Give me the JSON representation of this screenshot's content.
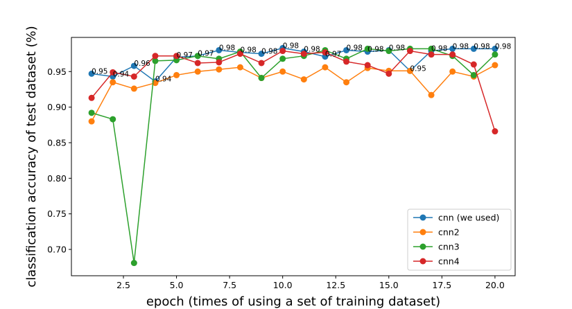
{
  "chart_data": {
    "type": "line",
    "xlabel": "epoch (times of using a set of training dataset)",
    "ylabel": "classification accuracy of test dataset (%)",
    "xlim": [
      0.05,
      20.95
    ],
    "ylim": [
      0.663,
      0.998
    ],
    "x_ticks": [
      2.5,
      5.0,
      7.5,
      10.0,
      12.5,
      15.0,
      17.5,
      20.0
    ],
    "x_tick_labels": [
      "2.5",
      "5.0",
      "7.5",
      "10.0",
      "12.5",
      "15.0",
      "17.5",
      "20.0"
    ],
    "y_ticks": [
      0.7,
      0.75,
      0.8,
      0.85,
      0.9,
      0.95
    ],
    "y_tick_labels": [
      "0.70",
      "0.75",
      "0.80",
      "0.85",
      "0.90",
      "0.95"
    ],
    "grid": false,
    "legend_position": "lower-right",
    "x": [
      1,
      2,
      3,
      4,
      5,
      6,
      7,
      8,
      9,
      10,
      11,
      12,
      13,
      14,
      15,
      16,
      17,
      18,
      19,
      20
    ],
    "series": [
      {
        "name": "cnn (we used)",
        "color": "#1f77b4",
        "values": [
          0.947,
          0.943,
          0.958,
          0.936,
          0.97,
          0.972,
          0.98,
          0.977,
          0.975,
          0.983,
          0.978,
          0.971,
          0.98,
          0.978,
          0.98,
          0.951,
          0.979,
          0.982,
          0.982,
          0.982
        ],
        "point_labels": [
          "0.95",
          "0.94",
          "0.96",
          "0.94",
          "0.97",
          "0.97",
          "0.98",
          "0.98",
          "0.98",
          "0.98",
          "0.98",
          "0.97",
          "0.98",
          "0.98",
          "0.98",
          "0.95",
          "0.98",
          "0.98",
          "0.98",
          "0.98"
        ]
      },
      {
        "name": "cnn2",
        "color": "#ff7f0e",
        "values": [
          0.88,
          0.935,
          0.926,
          0.934,
          0.945,
          0.95,
          0.953,
          0.956,
          0.941,
          0.95,
          0.939,
          0.956,
          0.935,
          0.955,
          0.951,
          0.951,
          0.917,
          0.95,
          0.943,
          0.959
        ]
      },
      {
        "name": "cnn3",
        "color": "#2ca02c",
        "values": [
          0.892,
          0.883,
          0.681,
          0.965,
          0.966,
          0.972,
          0.968,
          0.978,
          0.941,
          0.968,
          0.972,
          0.98,
          0.968,
          0.982,
          0.979,
          0.982,
          0.982,
          0.972,
          0.945,
          0.974
        ]
      },
      {
        "name": "cnn4",
        "color": "#d62728",
        "values": [
          0.913,
          0.949,
          0.943,
          0.972,
          0.972,
          0.962,
          0.963,
          0.975,
          0.962,
          0.979,
          0.975,
          0.977,
          0.964,
          0.959,
          0.947,
          0.979,
          0.974,
          0.974,
          0.96,
          0.866
        ]
      }
    ]
  }
}
